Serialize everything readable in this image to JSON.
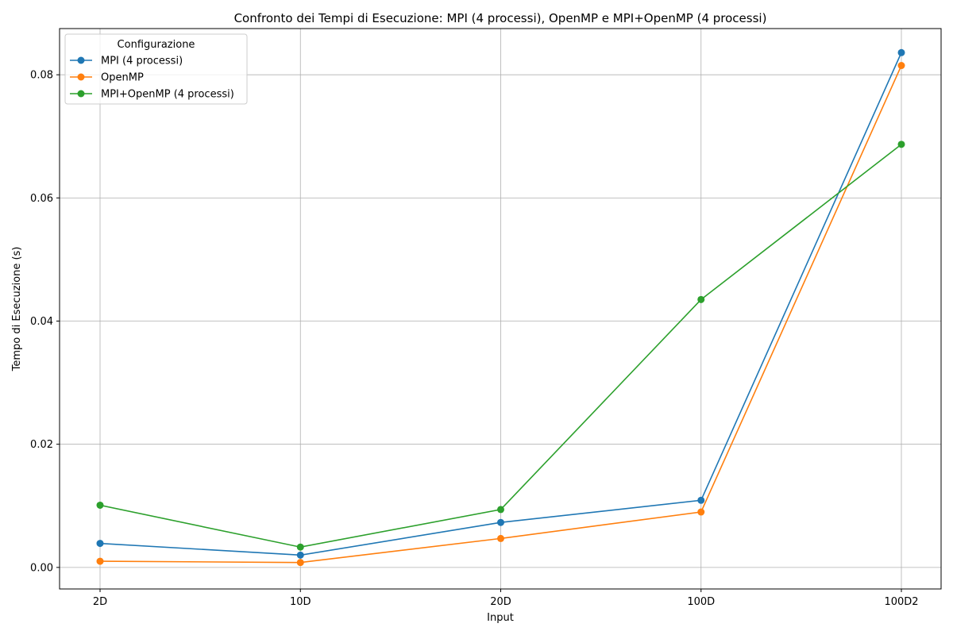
{
  "chart_data": {
    "type": "line",
    "title": "Confronto dei Tempi di Esecuzione: MPI (4 processi), OpenMP e MPI+OpenMP (4 processi)",
    "xlabel": "Input",
    "ylabel": "Tempo di Esecuzione (s)",
    "categories": [
      "2D",
      "10D",
      "20D",
      "100D",
      "100D2"
    ],
    "ylim": [
      -0.0035,
      0.0875
    ],
    "yticks": [
      0.0,
      0.02,
      0.04,
      0.06,
      0.08
    ],
    "ytick_labels": [
      "0.00",
      "0.02",
      "0.04",
      "0.06",
      "0.08"
    ],
    "grid": true,
    "legend": {
      "title": "Configurazione",
      "position": "top-left"
    },
    "series": [
      {
        "name": "MPI (4 processi)",
        "color": "#1f77b4",
        "values": [
          0.0039,
          0.002,
          0.0073,
          0.0109,
          0.0836
        ]
      },
      {
        "name": "OpenMP",
        "color": "#ff7f0e",
        "values": [
          0.001,
          0.0008,
          0.0047,
          0.009,
          0.0815
        ]
      },
      {
        "name": "MPI+OpenMP (4 processi)",
        "color": "#2ca02c",
        "values": [
          0.0101,
          0.0033,
          0.0094,
          0.0435,
          0.0687
        ]
      }
    ]
  }
}
